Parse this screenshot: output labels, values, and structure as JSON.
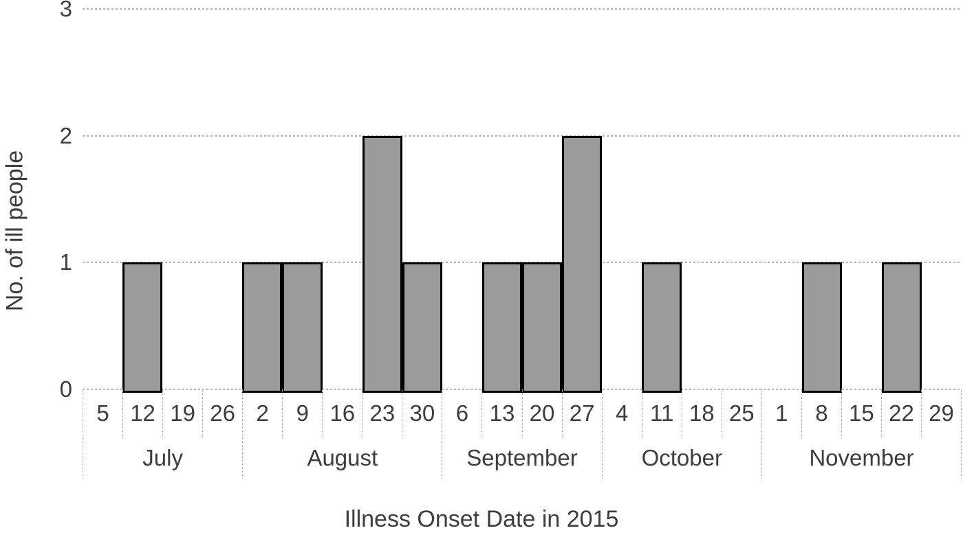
{
  "chart_data": {
    "type": "bar",
    "title": "",
    "xlabel": "Illness Onset Date in 2015",
    "ylabel": "No. of ill people",
    "ylim": [
      0,
      3
    ],
    "yticks": [
      0,
      1,
      2,
      3
    ],
    "grid": "horizontal-dotted",
    "legend": "none",
    "colors": {
      "bar_fill": "#9b9b9b",
      "bar_border": "#000000",
      "gridline": "#b4b4b4",
      "axis_table_border": "#b0b0b0",
      "text": "#3d3d3d",
      "background": "#ffffff"
    },
    "months": [
      {
        "name": "July",
        "weeks": [
          "5",
          "12",
          "19",
          "26"
        ],
        "values": [
          0,
          1,
          0,
          0
        ]
      },
      {
        "name": "August",
        "weeks": [
          "2",
          "9",
          "16",
          "23",
          "30"
        ],
        "values": [
          1,
          1,
          0,
          2,
          1
        ]
      },
      {
        "name": "September",
        "weeks": [
          "6",
          "13",
          "20",
          "27"
        ],
        "values": [
          0,
          1,
          1,
          2
        ]
      },
      {
        "name": "October",
        "weeks": [
          "4",
          "11",
          "18",
          "25"
        ],
        "values": [
          0,
          1,
          0,
          0
        ]
      },
      {
        "name": "November",
        "weeks": [
          "1",
          "8",
          "15",
          "22",
          "29"
        ],
        "values": [
          0,
          1,
          0,
          1,
          0
        ]
      }
    ]
  }
}
